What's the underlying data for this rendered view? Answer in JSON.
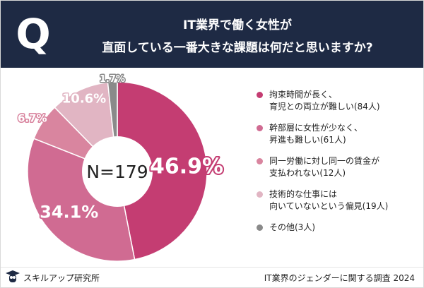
{
  "header": {
    "q_mark": "Q",
    "title_line1": "IT業界で働く女性が",
    "title_line2": "直面している一番大きな課題は何だと思いますか?"
  },
  "chart_data": {
    "type": "pie",
    "donut": true,
    "center_label": "N=179",
    "slices": [
      {
        "label_lines": [
          "拘束時間が長く、",
          "育児との両立が難しい(84人)"
        ],
        "count": 84,
        "percent": 46.9,
        "percent_label": "46.9%",
        "color": "#c43d72"
      },
      {
        "label_lines": [
          "幹部層に女性が少なく、",
          "昇進も難しい(61人)"
        ],
        "count": 61,
        "percent": 34.1,
        "percent_label": "34.1%",
        "color": "#d06b92"
      },
      {
        "label_lines": [
          "同一労働に対し同一の賃金が",
          "支払われない(12人)"
        ],
        "count": 12,
        "percent": 6.7,
        "percent_label": "6.7%",
        "color": "#d9859f"
      },
      {
        "label_lines": [
          "技術的な仕事には",
          "向いていないという偏見(19人)"
        ],
        "count": 19,
        "percent": 10.6,
        "percent_label": "10.6%",
        "color": "#e1b5c3"
      },
      {
        "label_lines": [
          "その他(3人)"
        ],
        "count": 3,
        "percent": 1.7,
        "percent_label": "1.7%",
        "color": "#8a8a8a"
      }
    ]
  },
  "footer": {
    "brand": "スキルアップ研究所",
    "note": "IT業界のジェンダーに関する調査 2024"
  },
  "colors": {
    "header_bg": "#1e2a44",
    "text": "#222222"
  }
}
